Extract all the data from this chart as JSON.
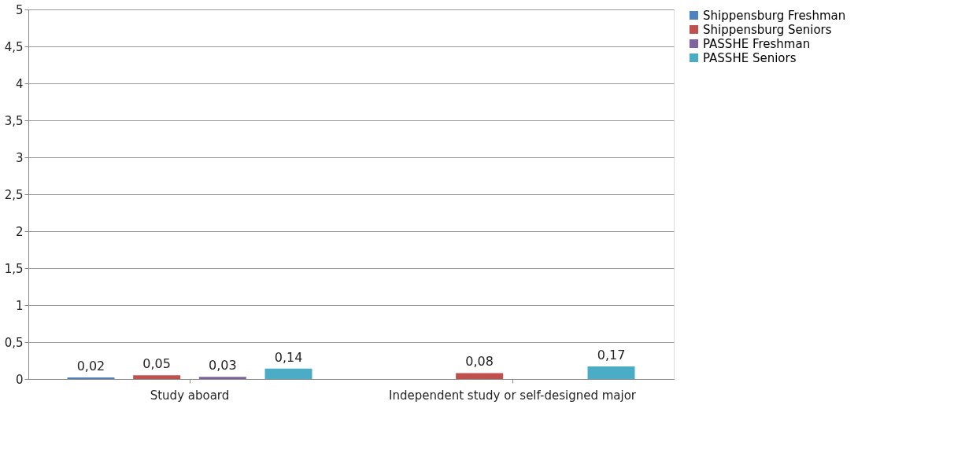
{
  "chart_data": {
    "type": "bar",
    "categories": [
      "Study aboard",
      "Independent study or self-designed major"
    ],
    "series": [
      {
        "name": "Shippensburg Freshman",
        "color": "#4f81bd",
        "values": [
          0.02,
          null
        ],
        "value_labels": [
          "0,02",
          null
        ]
      },
      {
        "name": "Shippensburg Seniors",
        "color": "#c0504d",
        "values": [
          0.05,
          0.08
        ],
        "value_labels": [
          "0,05",
          "0,08"
        ]
      },
      {
        "name": "PASSHE Freshman",
        "color": "#8064a2",
        "values": [
          0.03,
          null
        ],
        "value_labels": [
          "0,03",
          null
        ]
      },
      {
        "name": "PASSHE Seniors",
        "color": "#4bacc6",
        "values": [
          0.14,
          0.17
        ],
        "value_labels": [
          "0,14",
          "0,17"
        ]
      }
    ],
    "ylim": [
      0,
      5
    ],
    "yticks": [
      0,
      {
        "value": 0.5,
        "label": "0,5"
      },
      1,
      {
        "value": 1.5,
        "label": "1,5"
      },
      2,
      {
        "value": 2.5,
        "label": "2,5"
      },
      3,
      {
        "value": 3.5,
        "label": "3,5"
      },
      4,
      {
        "value": 4.5,
        "label": "4,5"
      },
      5
    ],
    "grid": "y",
    "legend": "right"
  }
}
